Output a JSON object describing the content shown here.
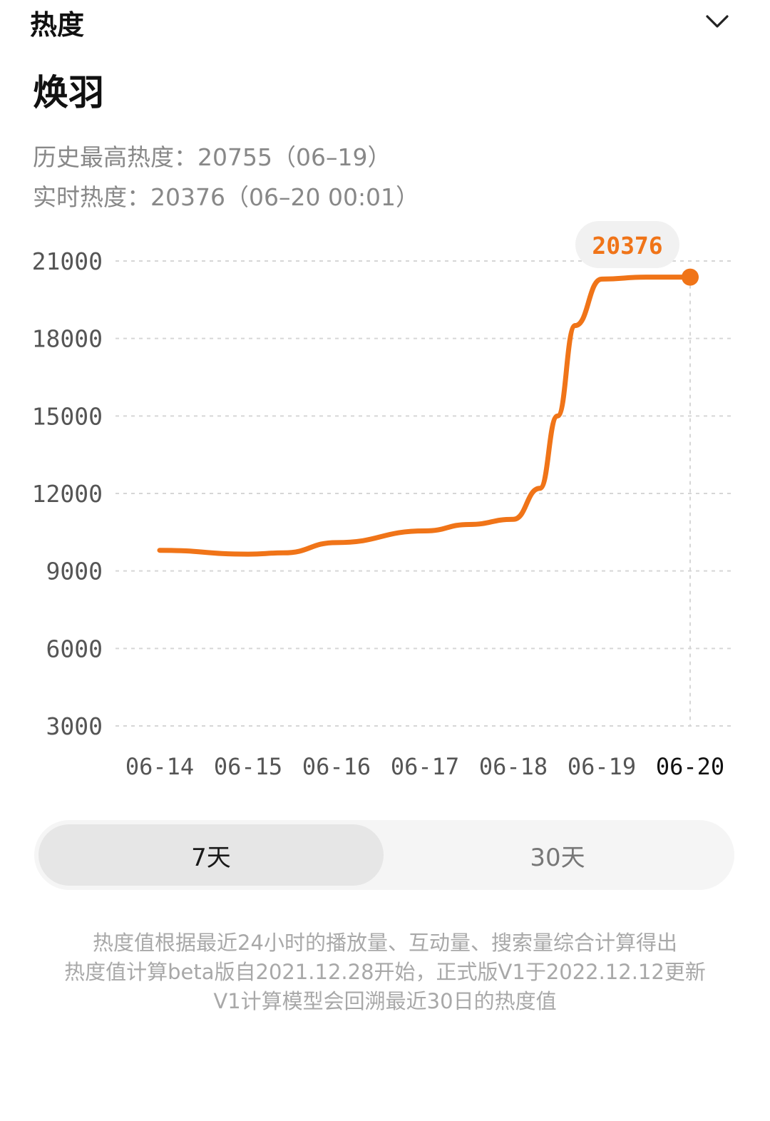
{
  "header": {
    "title": "热度",
    "collapse_icon": "chevron-down-icon"
  },
  "topic": {
    "name": "焕羽"
  },
  "stats": {
    "peak": "历史最高热度：20755（06–19）",
    "realtime": "实时热度：20376（06–20 00:01）"
  },
  "colors": {
    "accent": "#f07418",
    "badge_bg": "#f1f1f1",
    "grid": "#d6d6d6",
    "axis_text": "#555555",
    "axis_text_active": "#111111"
  },
  "chart_data": {
    "type": "line",
    "title": "",
    "xlabel": "",
    "ylabel": "",
    "categories": [
      "06-14",
      "06-15",
      "06-16",
      "06-17",
      "06-18",
      "06-19",
      "06-20"
    ],
    "y_ticks": [
      "21000",
      "18000",
      "15000",
      "12000",
      "9000",
      "6000",
      "3000"
    ],
    "ylim": [
      3000,
      21000
    ],
    "grid": true,
    "active_category": "06-20",
    "highlight_label": "20376",
    "series": [
      {
        "x": [
          "06-14",
          "06-15",
          "06-15",
          "06-16",
          "06-17",
          "06-17",
          "06-18",
          "06-18",
          "06-18",
          "06-18",
          "06-19",
          "06-19",
          "06-20"
        ],
        "x_fraction": [
          0,
          0,
          0.4,
          0,
          0,
          0.5,
          0,
          0.3,
          0.5,
          0.7,
          0,
          0.5,
          0
        ],
        "values": [
          9800,
          9650,
          9700,
          10100,
          10550,
          10800,
          11000,
          12200,
          15000,
          18500,
          20300,
          20376,
          20376
        ]
      }
    ]
  },
  "range_toggle": {
    "option_7": "7天",
    "option_30": "30天",
    "selected": "7天"
  },
  "footnote": {
    "line1": "热度值根据最近24小时的播放量、互动量、搜索量综合计算得出",
    "line2": "热度值计算beta版自2021.12.28开始，正式版V1于2022.12.12更新",
    "line3": "V1计算模型会回溯最近30日的热度值"
  }
}
